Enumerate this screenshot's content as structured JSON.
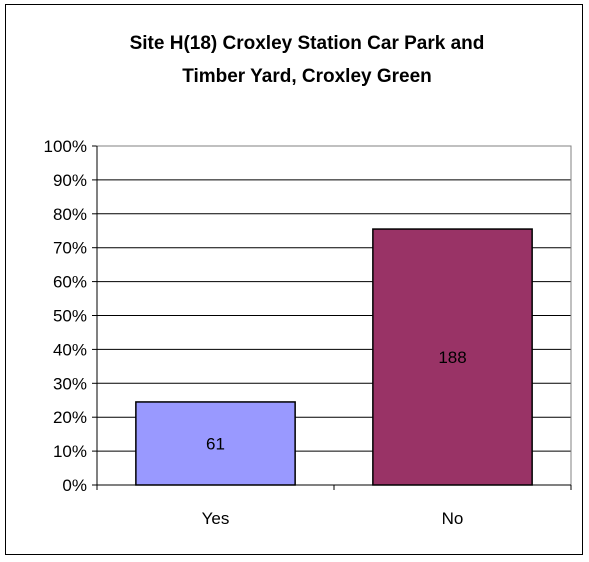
{
  "chart_data": {
    "type": "bar",
    "title_lines": [
      "Site H(18) Croxley Station Car Park and",
      "Timber Yard, Croxley Green"
    ],
    "categories": [
      "Yes",
      "No"
    ],
    "values": [
      24.5,
      75.5
    ],
    "data_labels": [
      "61",
      "188"
    ],
    "ylim": [
      0,
      100
    ],
    "yticks": [
      "0%",
      "10%",
      "20%",
      "30%",
      "40%",
      "50%",
      "60%",
      "70%",
      "80%",
      "90%",
      "100%"
    ],
    "grid": true,
    "legend": false,
    "colors": [
      "#9999ff",
      "#993366"
    ]
  }
}
